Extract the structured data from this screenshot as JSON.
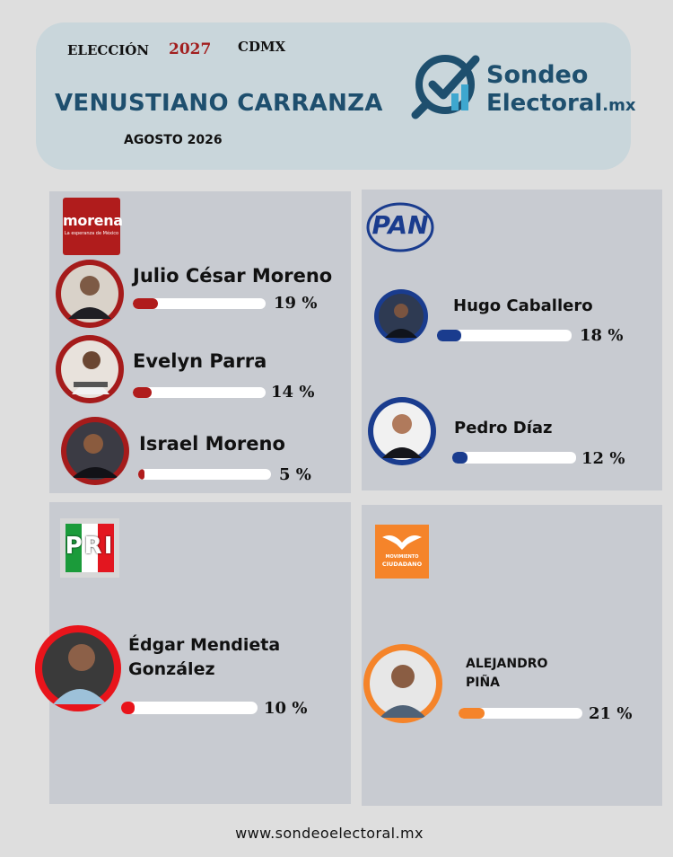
{
  "header": {
    "election_label": "ELECCIÓN",
    "year": "2027",
    "region": "CDMX",
    "title": "VENUSTIANO CARRANZA",
    "date": "AGOSTO 2026"
  },
  "brand": {
    "name_line1": "Sondeo",
    "name_line2": "Electoral",
    "name_suffix": ".mx",
    "color": "#1e4f6e"
  },
  "parties": {
    "morena": {
      "logo_name": "morena",
      "logo_tagline": "La esperanza de México",
      "color": "#b01c1c",
      "candidates": [
        {
          "name": "Julio César Moreno",
          "percent": 19,
          "label": "19 %"
        },
        {
          "name": "Evelyn Parra",
          "percent": 14,
          "label": "14 %"
        },
        {
          "name": "Israel Moreno",
          "percent": 5,
          "label": "5 %"
        }
      ]
    },
    "pan": {
      "logo_name": "PAN",
      "color": "#1a3c8e",
      "candidates": [
        {
          "name": "Hugo Caballero",
          "percent": 18,
          "label": "18 %"
        },
        {
          "name": "Pedro Díaz",
          "percent": 12,
          "label": "12 %"
        }
      ]
    },
    "pri": {
      "logo_name": "PRI",
      "color": "#e8141b",
      "candidates": [
        {
          "name_line1": "Édgar Mendieta",
          "name_line2": "González",
          "percent": 10,
          "label": "10 %"
        }
      ]
    },
    "mc": {
      "logo_line1": "MOVIMIENTO",
      "logo_line2": "CIUDADANO",
      "color": "#f5842a",
      "candidates": [
        {
          "name_line1": "ALEJANDRO",
          "name_line2": "PIÑA",
          "percent": 21,
          "label": "21 %"
        }
      ]
    }
  },
  "footer": {
    "url": "www.sondeoelectoral.mx"
  }
}
